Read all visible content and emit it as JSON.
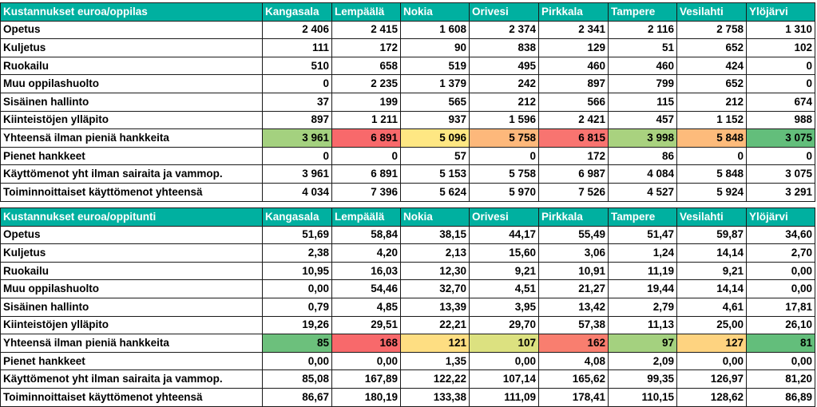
{
  "heat_colors": {
    "dark_green": "#63be7b",
    "light_green": "#a4d17f",
    "yellow_green": "#dce180",
    "yellow": "#fee783",
    "orange": "#fdb87b",
    "red": "#f8696b",
    "light_red": "#f98d72",
    "olive_green": "#c6db80"
  },
  "tables": [
    {
      "title": "Kustannukset euroa/oppilas",
      "columns": [
        "Kangasala",
        "Lempäälä",
        "Nokia",
        "Orivesi",
        "Pirkkala",
        "Tampere",
        "Vesilahti",
        "Ylöjärvi"
      ],
      "rows": [
        {
          "label": "Opetus",
          "values": [
            "2 406",
            "2 415",
            "1 608",
            "2 374",
            "2 341",
            "2 116",
            "2 758",
            "1 310"
          ]
        },
        {
          "label": "Kuljetus",
          "values": [
            "111",
            "172",
            "90",
            "838",
            "129",
            "51",
            "652",
            "102"
          ]
        },
        {
          "label": "Ruokailu",
          "values": [
            "510",
            "658",
            "519",
            "495",
            "460",
            "460",
            "424",
            "0"
          ]
        },
        {
          "label": "Muu oppilashuolto",
          "values": [
            "0",
            "2 235",
            "1 379",
            "242",
            "897",
            "799",
            "652",
            "0"
          ]
        },
        {
          "label": "Sisäinen hallinto",
          "values": [
            "37",
            "199",
            "565",
            "212",
            "566",
            "115",
            "212",
            "674"
          ]
        },
        {
          "label": "Kiinteistöjen ylläpito",
          "values": [
            "897",
            "1 211",
            "937",
            "1 596",
            "2 421",
            "457",
            "1 152",
            "988"
          ]
        },
        {
          "label": "Yhteensä ilman pieniä hankkeita",
          "values": [
            "3 961",
            "6 891",
            "5 096",
            "5 758",
            "6 815",
            "3 998",
            "5 848",
            "3 075"
          ],
          "colors": [
            "#a4d17f",
            "#f8696b",
            "#fee783",
            "#fdb87b",
            "#f87470",
            "#a9d27f",
            "#fdbb7b",
            "#63be7b"
          ]
        },
        {
          "label": "Pienet hankkeet",
          "values": [
            "0",
            "0",
            "57",
            "0",
            "172",
            "86",
            "0",
            "0"
          ]
        },
        {
          "label": "Käyttömenot yht ilman sairaita ja vammop.",
          "values": [
            "3 961",
            "6 891",
            "5 153",
            "5 758",
            "6 987",
            "4 084",
            "5 848",
            "3 075"
          ]
        },
        {
          "label": "Toiminnoittaiset käyttömenot yhteensä",
          "values": [
            "4 034",
            "7 396",
            "5 624",
            "5 970",
            "7 526",
            "4 527",
            "5 924",
            "3 291"
          ]
        }
      ]
    },
    {
      "title": "Kustannukset euroa/oppitunti",
      "columns": [
        "Kangasala",
        "Lempäälä",
        "Nokia",
        "Orivesi",
        "Pirkkala",
        "Tampere",
        "Vesilahti",
        "Ylöjärvi"
      ],
      "rows": [
        {
          "label": "Opetus",
          "values": [
            "51,69",
            "58,84",
            "38,15",
            "44,17",
            "55,49",
            "51,47",
            "59,87",
            "34,60"
          ]
        },
        {
          "label": "Kuljetus",
          "values": [
            "2,38",
            "4,20",
            "2,13",
            "15,60",
            "3,06",
            "1,24",
            "14,14",
            "2,70"
          ]
        },
        {
          "label": "Ruokailu",
          "values": [
            "10,95",
            "16,03",
            "12,30",
            "9,21",
            "10,91",
            "11,19",
            "9,21",
            "0,00"
          ]
        },
        {
          "label": "Muu oppilashuolto",
          "values": [
            "0,00",
            "54,46",
            "32,70",
            "4,51",
            "21,27",
            "19,44",
            "14,14",
            "0,00"
          ]
        },
        {
          "label": "Sisäinen hallinto",
          "values": [
            "0,79",
            "4,85",
            "13,39",
            "3,95",
            "13,42",
            "2,79",
            "4,61",
            "17,81"
          ]
        },
        {
          "label": "Kiinteistöjen ylläpito",
          "values": [
            "19,26",
            "29,51",
            "22,21",
            "29,70",
            "57,38",
            "11,13",
            "25,00",
            "26,10"
          ]
        },
        {
          "label": "Yhteensä ilman pieniä hankkeita",
          "values": [
            "85",
            "168",
            "121",
            "107",
            "162",
            "97",
            "127",
            "81"
          ],
          "colors": [
            "#6cc07c",
            "#f8696b",
            "#fede82",
            "#dce180",
            "#f97e6f",
            "#a4d17f",
            "#fed380",
            "#63be7b"
          ]
        },
        {
          "label": "Pienet hankkeet",
          "values": [
            "0,00",
            "0,00",
            "1,35",
            "0,00",
            "4,08",
            "2,09",
            "0,00",
            "0,00"
          ]
        },
        {
          "label": "Käyttömenot yht ilman sairaita ja vammop.",
          "values": [
            "85,08",
            "167,89",
            "122,22",
            "107,14",
            "165,62",
            "99,35",
            "126,97",
            "81,20"
          ]
        },
        {
          "label": "Toiminnoittaiset käyttömenot yhteensä",
          "values": [
            "86,67",
            "180,19",
            "133,38",
            "111,09",
            "178,41",
            "110,15",
            "128,62",
            "86,89"
          ]
        }
      ]
    }
  ]
}
